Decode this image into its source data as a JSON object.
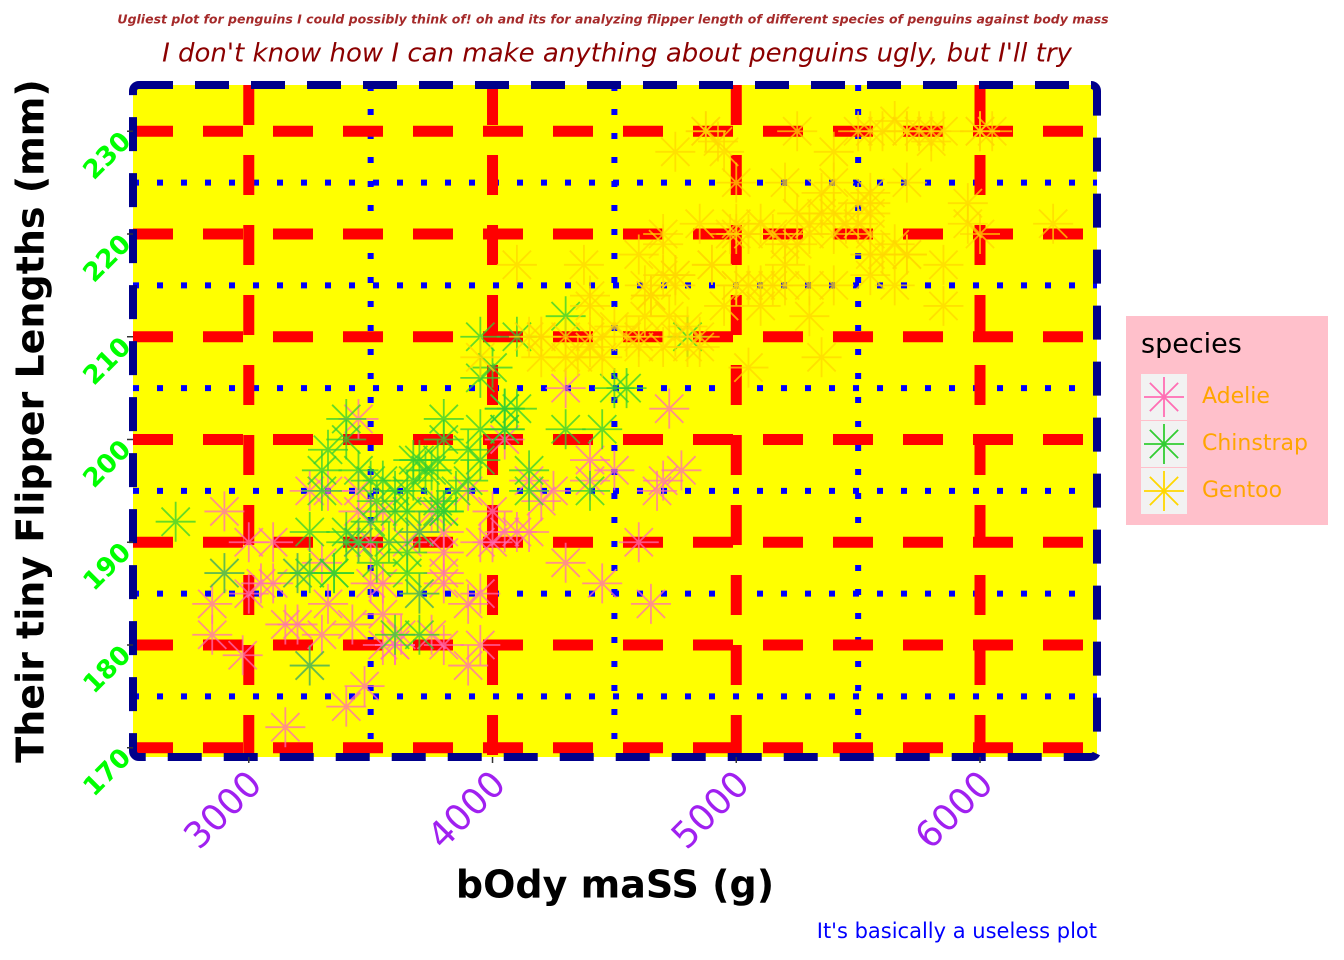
{
  "chart_data": {
    "type": "scatter",
    "title": "Ugliest plot for penguins I could possibly think of! oh and its for analyzing flipper length of different species of penguins against body mass",
    "subtitle": "I don't know how I can make anything about penguins ugly, but I'll try",
    "caption": "It's basically a useless plot",
    "xlabel": "bOdy maSS (g)",
    "ylabel": "Their tiny Flipper Lengths (mm)",
    "legend_title": "species",
    "legend_position": "right",
    "grid": true,
    "xlim": [
      2525,
      6480
    ],
    "ylim": [
      169.1,
      234.5
    ],
    "xticks": [
      3000,
      4000,
      5000,
      6000
    ],
    "yticks": [
      170,
      180,
      190,
      200,
      210,
      220,
      230
    ],
    "xminor": [
      3500,
      4500,
      5500
    ],
    "yminor": [
      175,
      185,
      195,
      205,
      215,
      225
    ],
    "series": [
      {
        "name": "Adelie",
        "color": "#ff6eb4",
        "x": [
          3750,
          3800,
          3250,
          3450,
          3650,
          3625,
          4675,
          3200,
          3800,
          4400,
          3700,
          3450,
          4500,
          3325,
          4200,
          3400,
          3600,
          3800,
          3950,
          3800,
          3800,
          3550,
          3200,
          3150,
          3950,
          3250,
          3900,
          3300,
          3900,
          3325,
          4150,
          3950,
          3550,
          3300,
          4650,
          3150,
          3900,
          3100,
          4400,
          3000,
          4600,
          3425,
          2975,
          3450,
          4150,
          3500,
          4300,
          3450,
          4050,
          2900,
          3700,
          3550,
          3750,
          2850,
          4700,
          3100,
          4000,
          4300,
          4775,
          4450,
          3450,
          4250,
          2850,
          3475,
          4725,
          3500,
          4050,
          3600,
          4100,
          2900,
          3000,
          3050,
          4000,
          3550
        ],
        "y": [
          181,
          186,
          195,
          193,
          190,
          181,
          195,
          182,
          191,
          198,
          185,
          195,
          197,
          184,
          194,
          174,
          180,
          189,
          185,
          180,
          187,
          183,
          187,
          172,
          180,
          178,
          178,
          188,
          184,
          195,
          196,
          190,
          180,
          181,
          184,
          182,
          195,
          186,
          196,
          185,
          190,
          182,
          179,
          190,
          191,
          186,
          188,
          190,
          200,
          187,
          191,
          186,
          193,
          181,
          196,
          190,
          193,
          205,
          197,
          186,
          202,
          195,
          184,
          176,
          203,
          190,
          191,
          180,
          191,
          193,
          190,
          186,
          190,
          193
        ]
      },
      {
        "name": "Chinstrap",
        "color": "#32cd32",
        "x": [
          3500,
          3900,
          3650,
          3525,
          3725,
          3950,
          3250,
          3750,
          4150,
          3700,
          3800,
          3775,
          3700,
          4050,
          3575,
          4050,
          3300,
          3700,
          3450,
          4400,
          3600,
          3400,
          2900,
          3800,
          3300,
          4150,
          3400,
          3800,
          3700,
          4550,
          3200,
          4300,
          3350,
          4100,
          3600,
          3900,
          3850,
          4800,
          2700,
          4500,
          3950,
          3650,
          3550,
          3500,
          3675,
          4450,
          3400,
          4300,
          3250,
          3675,
          3325,
          3950,
          3600,
          4050,
          3350,
          3450,
          3250,
          4050,
          3800,
          3525,
          3950,
          3650,
          3650,
          4000,
          3400,
          3775,
          4100,
          3775
        ],
        "y": [
          192,
          196,
          193,
          188,
          197,
          198,
          178,
          197,
          195,
          198,
          193,
          194,
          185,
          201,
          190,
          201,
          197,
          181,
          190,
          195,
          181,
          191,
          187,
          193,
          195,
          197,
          200,
          200,
          191,
          205,
          187,
          201,
          187,
          203,
          195,
          199,
          195,
          210,
          192,
          205,
          210,
          187,
          196,
          196,
          196,
          201,
          190,
          212,
          187,
          198,
          199,
          201,
          193,
          203,
          187,
          197,
          191,
          203,
          202,
          194,
          206,
          189,
          195,
          207,
          202,
          193,
          210,
          198
        ]
      },
      {
        "name": "Gentoo",
        "color": "#ffd700",
        "x": [
          4500,
          5700,
          4450,
          5700,
          5400,
          4550,
          4800,
          5200,
          4400,
          5150,
          4650,
          5550,
          4650,
          5850,
          4200,
          5850,
          4150,
          6300,
          4800,
          5350,
          5700,
          5000,
          4400,
          5050,
          5000,
          5100,
          5650,
          4600,
          5550,
          5250,
          4700,
          5050,
          6050,
          5150,
          5400,
          4950,
          5250,
          4350,
          5350,
          3950,
          5700,
          4300,
          4750,
          5550,
          4900,
          4200,
          5400,
          5100,
          5300,
          4850,
          5300,
          4400,
          5000,
          4900,
          5050,
          4300,
          5000,
          4450,
          5550,
          4200,
          5300,
          4400,
          5650,
          4700,
          5700,
          4650,
          5800,
          4700,
          5550,
          4750,
          5000,
          5100,
          5200,
          4700,
          5800,
          4600,
          6000,
          4750,
          5950,
          4625,
          5450,
          4725,
          5350,
          4750,
          5600,
          4600,
          5300,
          4875,
          5550,
          4950,
          5400,
          4750,
          5650,
          4850,
          5200,
          4925,
          4875,
          4625,
          5250,
          4850,
          5600,
          4975,
          5500,
          5500,
          5950,
          5500,
          5850,
          6000,
          5750,
          5400,
          5200,
          6000,
          5550,
          4100,
          4375
        ],
        "y": [
          211,
          230,
          210,
          218,
          215,
          210,
          211,
          219,
          209,
          215,
          214,
          216,
          214,
          213,
          210,
          217,
          210,
          221,
          209,
          222,
          218,
          215,
          213,
          215,
          215,
          215,
          215,
          210,
          220,
          222,
          209,
          207,
          230,
          220,
          220,
          213,
          219,
          208,
          208,
          208,
          225,
          210,
          216,
          222,
          217,
          210,
          225,
          213,
          215,
          210,
          220,
          210,
          225,
          217,
          220,
          208,
          220,
          208,
          224,
          208,
          221,
          214,
          231,
          219,
          230,
          214,
          229,
          220,
          223,
          216,
          221,
          221,
          217,
          216,
          230,
          209,
          220,
          215,
          223,
          212,
          221,
          212,
          224,
          228,
          218,
          218,
          212,
          230,
          218,
          228,
          228,
          210,
          219,
          209,
          215,
          229,
          230,
          215,
          230,
          221,
          230,
          220,
          223,
          221,
          221,
          230,
          230,
          230,
          230,
          222,
          225,
          230,
          230,
          217,
          217
        ]
      }
    ]
  }
}
